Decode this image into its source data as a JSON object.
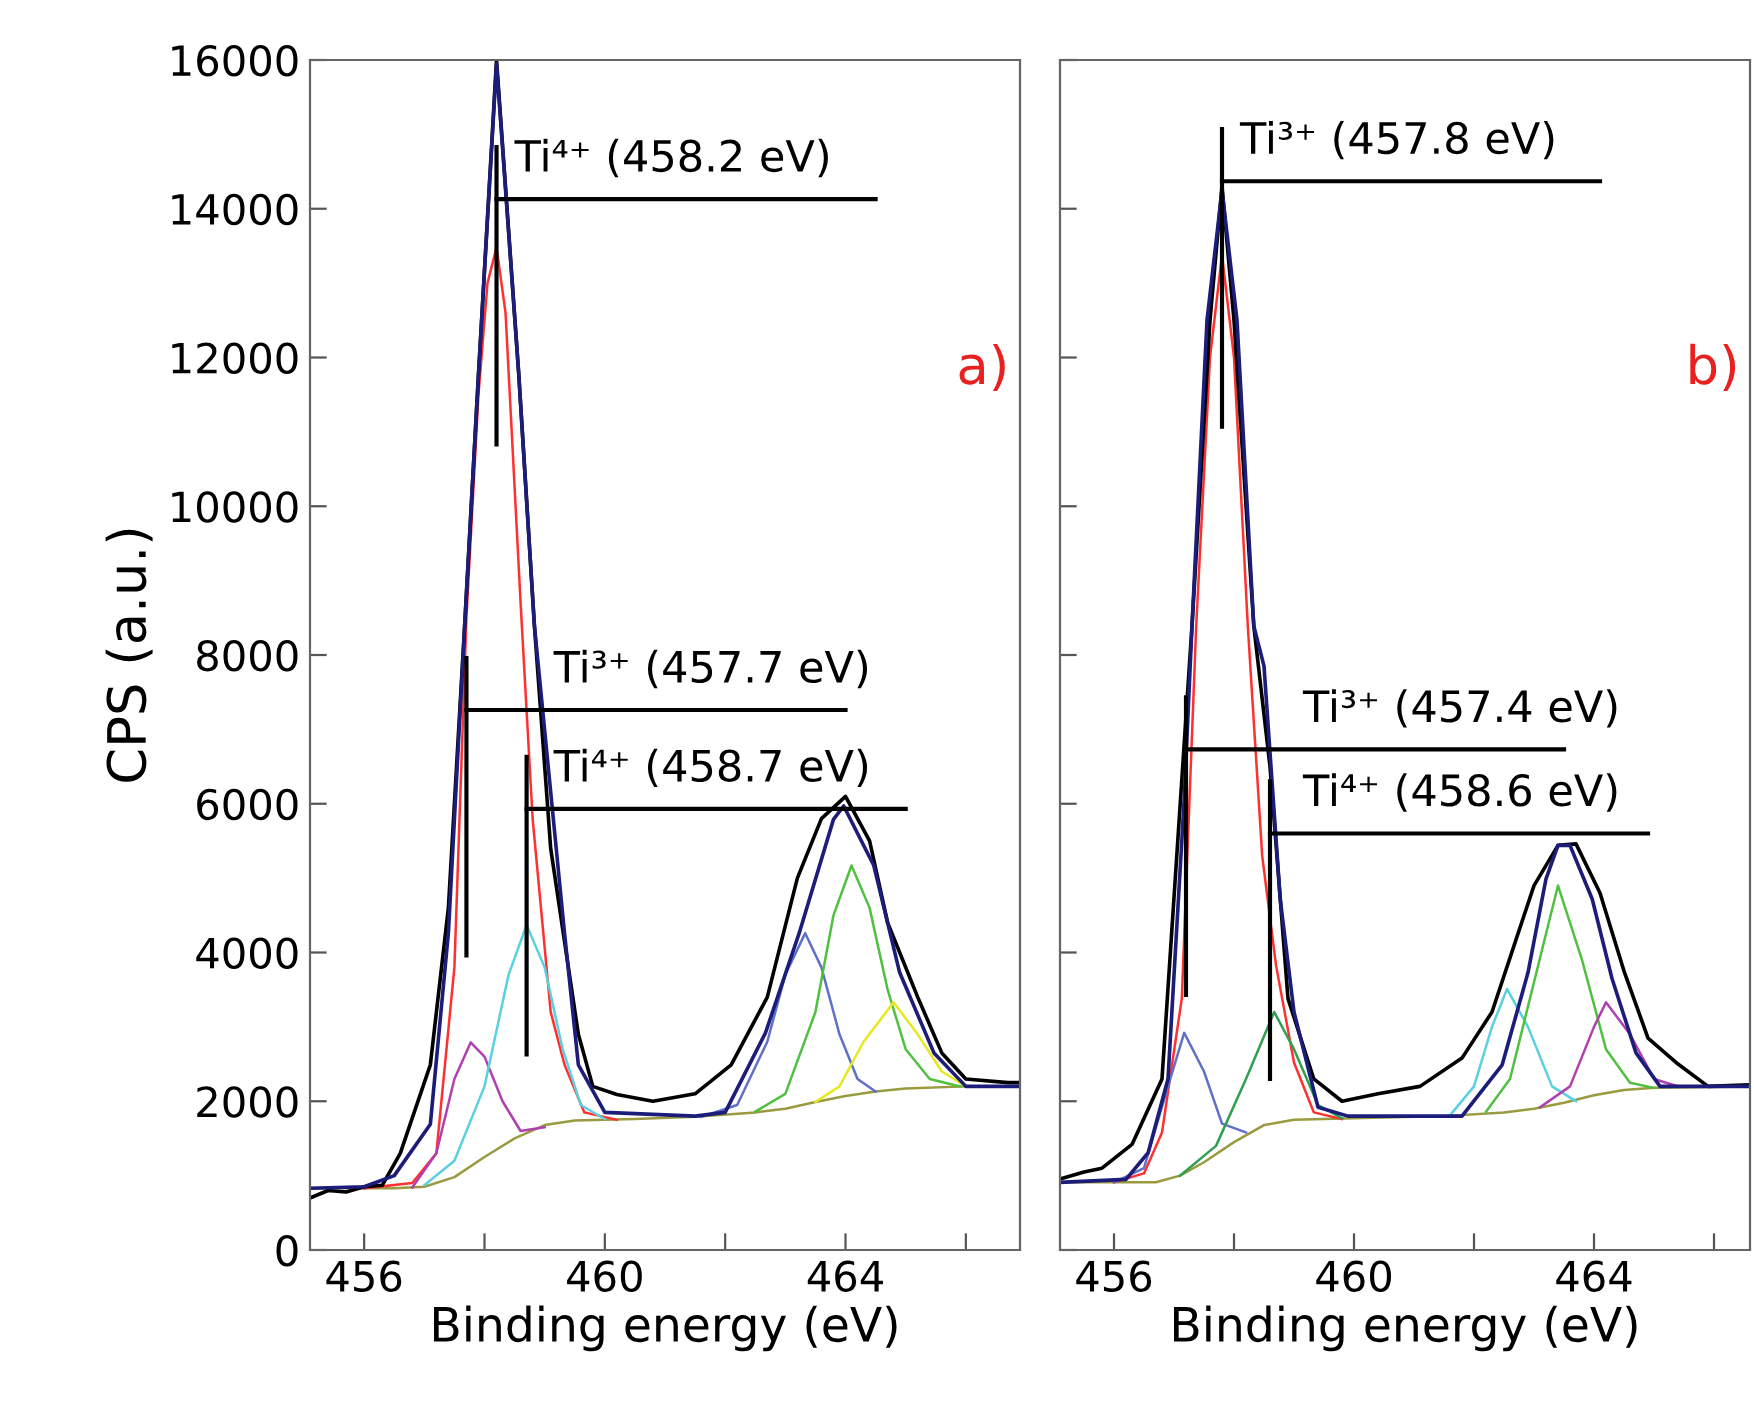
{
  "chart_data": [
    {
      "type": "line",
      "xlabel": "Binding energy (eV)",
      "ylabel": "CPS (a.u.)",
      "xlim": [
        455.1,
        466.9
      ],
      "ylim": [
        0,
        16000
      ],
      "xticks": [
        456,
        {
          "value": 458,
          "label": null
        },
        460,
        {
          "value": 462,
          "label": null
        },
        464,
        {
          "value": 466,
          "label": null
        }
      ],
      "yticks": [
        0,
        2000,
        4000,
        6000,
        8000,
        10000,
        12000,
        14000,
        16000
      ],
      "annotations": [
        {
          "text": "Ti⁴⁺ (458.2 eV)",
          "x": 458.2,
          "y": 14130
        },
        {
          "text": "Ti³⁺ (457.7 eV)",
          "x": 457.7,
          "y": 7260
        },
        {
          "text": "Ti⁴⁺ (458.7 eV)",
          "x": 458.7,
          "y": 5930
        },
        "a)"
      ],
      "series": [
        {
          "color": "#9a9a40",
          "x": [
            455.1,
            456.5,
            457.0,
            457.5,
            458.0,
            458.5,
            459.0,
            459.5,
            460.5,
            461.5,
            462.5,
            463.0,
            463.5,
            464.0,
            464.5,
            465.0,
            466.0,
            466.9
          ],
          "values": [
            830,
            830,
            850,
            980,
            1250,
            1500,
            1680,
            1740,
            1760,
            1790,
            1850,
            1900,
            1990,
            2070,
            2130,
            2170,
            2200,
            2200
          ]
        },
        {
          "color": "#ff3030",
          "x": [
            456.0,
            456.8,
            457.2,
            457.5,
            457.7,
            457.9,
            458.05,
            458.2,
            458.35,
            458.6,
            458.8,
            459.1,
            459.33,
            459.66,
            460.2
          ],
          "values": [
            830,
            900,
            1300,
            3800,
            8500,
            11500,
            13000,
            13480,
            12600,
            8700,
            5800,
            3200,
            2490,
            1850,
            1750
          ]
        },
        {
          "color": "#b040b0",
          "x": [
            456.8,
            457.2,
            457.5,
            457.77,
            458.0,
            458.3,
            458.6,
            459.0
          ],
          "values": [
            840,
            1300,
            2300,
            2790,
            2600,
            2000,
            1600,
            1650
          ]
        },
        {
          "color": "#5ad0e0",
          "x": [
            457.0,
            457.5,
            458.0,
            458.4,
            458.7,
            459.0,
            459.3,
            459.6,
            460.0
          ],
          "values": [
            870,
            1200,
            2200,
            3700,
            4370,
            3800,
            2700,
            1950,
            1760
          ]
        },
        {
          "color": "#6070c8",
          "x": [
            461.6,
            462.2,
            462.7,
            463.0,
            463.33,
            463.6,
            463.9,
            464.2,
            464.5
          ],
          "values": [
            1790,
            1950,
            2800,
            3700,
            4260,
            3800,
            2900,
            2300,
            2130
          ]
        },
        {
          "color": "#50c040",
          "x": [
            462.5,
            463.0,
            463.5,
            463.8,
            464.1,
            464.4,
            464.7,
            465.0,
            465.4,
            465.9
          ],
          "values": [
            1860,
            2100,
            3200,
            4500,
            5170,
            4600,
            3500,
            2700,
            2300,
            2200
          ]
        },
        {
          "color": "#e8e820",
          "x": [
            463.5,
            463.9,
            464.3,
            464.8,
            465.2,
            465.6,
            466.0
          ],
          "values": [
            1990,
            2200,
            2800,
            3330,
            2900,
            2400,
            2200
          ]
        },
        {
          "color": "#000000",
          "x": [
            455.1,
            455.4,
            455.7,
            456.0,
            456.3,
            456.6,
            457.1,
            457.4,
            457.67,
            457.9,
            458.2,
            458.57,
            458.83,
            459.1,
            459.56,
            459.8,
            460.2,
            460.8,
            461.5,
            462.1,
            462.7,
            463.2,
            463.6,
            464.0,
            464.4,
            464.7,
            465.2,
            465.6,
            466.0,
            466.7,
            466.9
          ],
          "values": [
            700,
            800,
            780,
            850,
            870,
            1300,
            2490,
            4600,
            8390,
            11770,
            16000,
            11770,
            8390,
            5400,
            2900,
            2200,
            2090,
            2000,
            2100,
            2490,
            3400,
            5000,
            5800,
            6100,
            5500,
            4400,
            3400,
            2650,
            2300,
            2250,
            2250
          ]
        },
        {
          "color": "#1c1c7a",
          "x": [
            455.1,
            456.0,
            456.5,
            457.1,
            457.4,
            457.6,
            457.67,
            457.9,
            458.2,
            458.57,
            458.83,
            459.33,
            459.56,
            460.0,
            461.5,
            462.0,
            462.67,
            463.23,
            463.8,
            463.97,
            464.47,
            464.9,
            465.47,
            466.0,
            466.9
          ],
          "values": [
            830,
            850,
            1000,
            1690,
            4260,
            7320,
            8390,
            11770,
            15950,
            11770,
            8390,
            4260,
            2490,
            1850,
            1800,
            1850,
            2920,
            4260,
            5790,
            5970,
            5170,
            3730,
            2650,
            2200,
            2200
          ]
        }
      ]
    },
    {
      "type": "line",
      "xlabel": "Binding energy (eV)",
      "tick_labels": "x",
      "xlim": [
        455.1,
        466.6
      ],
      "ylim": [
        0,
        16000
      ],
      "xticks": [
        456,
        {
          "value": 458,
          "label": null
        },
        460,
        {
          "value": 462,
          "label": null
        },
        464,
        {
          "value": 466,
          "label": null
        }
      ],
      "yticks": [
        0,
        2000,
        4000,
        6000,
        8000,
        10000,
        12000,
        14000,
        16000
      ],
      "annotations": [
        {
          "text": "Ti³⁺ (457.8 eV)",
          "x": 457.8,
          "y": 14370
        },
        {
          "text": "Ti³⁺ (457.4 eV)",
          "x": 457.2,
          "y": 6730
        },
        {
          "text": "Ti⁴⁺ (458.6 eV)",
          "x": 458.6,
          "y": 5600
        },
        "b)"
      ],
      "series": [
        {
          "color": "#9a9a40",
          "x": [
            455.1,
            456.7,
            457.1,
            457.5,
            458.0,
            458.5,
            459.0,
            460.0,
            461.5,
            462.5,
            463.0,
            463.5,
            464.0,
            464.5,
            465.0,
            466.6
          ],
          "values": [
            910,
            910,
            1000,
            1180,
            1450,
            1680,
            1750,
            1770,
            1800,
            1850,
            1900,
            1980,
            2080,
            2150,
            2180,
            2200
          ]
        },
        {
          "color": "#ff3030",
          "x": [
            456.0,
            456.5,
            456.8,
            457.13,
            457.37,
            457.6,
            457.8,
            458.0,
            458.23,
            458.47,
            458.7,
            459.0,
            459.33,
            459.8
          ],
          "values": [
            910,
            1030,
            1580,
            3380,
            8390,
            12000,
            13380,
            12000,
            8390,
            5300,
            3830,
            2520,
            1850,
            1760
          ]
        },
        {
          "color": "#6070c8",
          "x": [
            456.0,
            456.5,
            456.9,
            457.17,
            457.5,
            457.8,
            458.2
          ],
          "values": [
            910,
            1100,
            2200,
            2920,
            2400,
            1700,
            1580
          ]
        },
        {
          "color": "#30a050",
          "x": [
            457.1,
            457.7,
            458.2,
            458.67,
            459.0,
            459.4,
            459.8
          ],
          "values": [
            1000,
            1400,
            2300,
            3200,
            2700,
            1950,
            1770
          ]
        },
        {
          "color": "#5ad0e0",
          "x": [
            461.6,
            462.0,
            462.3,
            462.55,
            462.9,
            463.3,
            463.7
          ],
          "values": [
            1810,
            2200,
            3000,
            3510,
            3000,
            2200,
            2000
          ]
        },
        {
          "color": "#50c040",
          "x": [
            462.2,
            462.6,
            463.0,
            463.4,
            463.8,
            464.2,
            464.6,
            465.0
          ],
          "values": [
            1860,
            2300,
            3600,
            4900,
            3900,
            2700,
            2250,
            2180
          ]
        },
        {
          "color": "#b040b0",
          "x": [
            463.1,
            463.6,
            464.0,
            464.2,
            464.6,
            465.0,
            465.4
          ],
          "values": [
            1920,
            2200,
            3000,
            3330,
            2900,
            2300,
            2200
          ]
        },
        {
          "color": "#000000",
          "x": [
            455.13,
            455.5,
            455.8,
            456.3,
            456.8,
            457.3,
            457.6,
            457.8,
            458.0,
            458.33,
            458.6,
            458.9,
            459.33,
            459.8,
            460.4,
            461.1,
            461.8,
            462.3,
            462.67,
            463.0,
            463.4,
            463.7,
            464.1,
            464.5,
            464.9,
            465.4,
            465.9,
            466.6
          ],
          "values": [
            960,
            1050,
            1100,
            1420,
            2300,
            8390,
            12500,
            14300,
            12500,
            8390,
            6500,
            3380,
            2300,
            2000,
            2100,
            2200,
            2580,
            3200,
            4100,
            4900,
            5440,
            5460,
            4800,
            3750,
            2850,
            2500,
            2200,
            2220
          ]
        },
        {
          "color": "#1c1c7a",
          "x": [
            455.1,
            456.2,
            456.57,
            456.9,
            457.17,
            457.3,
            457.55,
            457.8,
            458.05,
            458.33,
            458.5,
            458.77,
            459.0,
            459.4,
            459.9,
            461.8,
            462.47,
            462.9,
            463.2,
            463.4,
            463.6,
            463.97,
            464.3,
            464.7,
            465.1,
            466.6
          ],
          "values": [
            910,
            950,
            1310,
            2300,
            6060,
            8390,
            12500,
            14250,
            12500,
            8390,
            7850,
            4720,
            3200,
            1920,
            1800,
            1800,
            2490,
            3730,
            4990,
            5440,
            5440,
            4720,
            3650,
            2650,
            2200,
            2200
          ]
        }
      ]
    }
  ]
}
